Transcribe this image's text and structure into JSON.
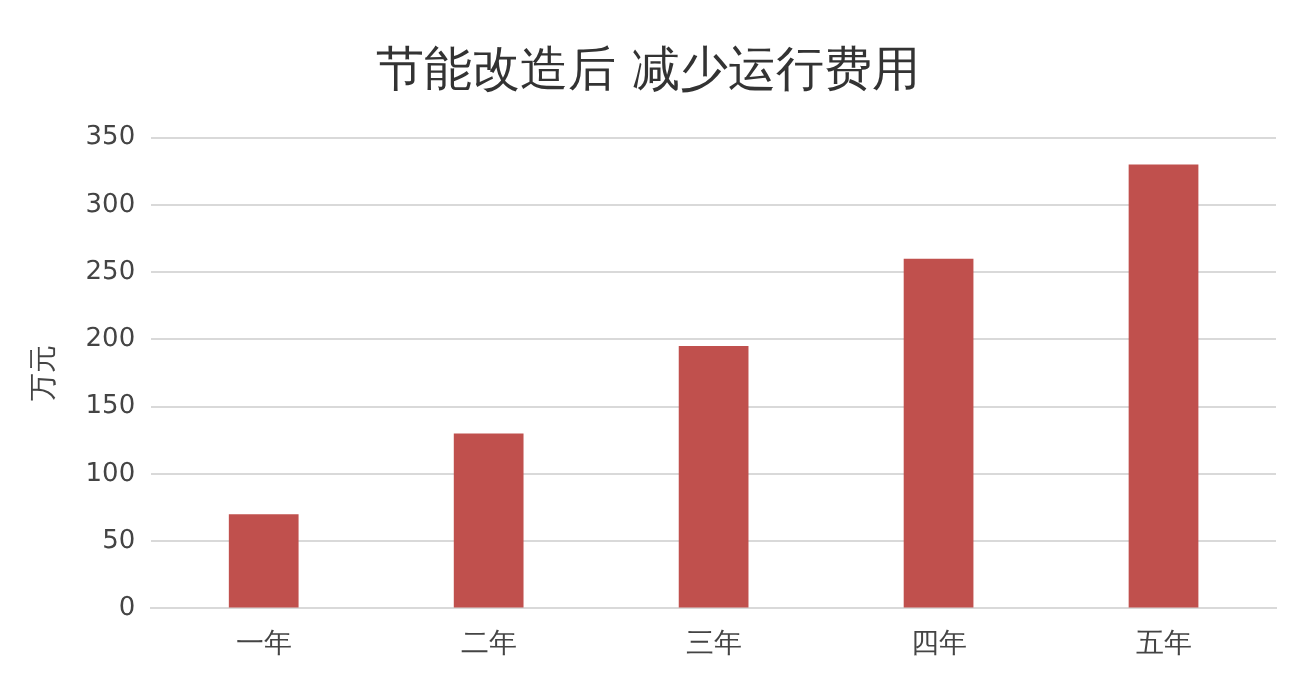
{
  "chart_data": {
    "type": "bar",
    "title": "节能改造后 减少运行费用",
    "ylabel": "万元",
    "categories": [
      "一年",
      "二年",
      "三年",
      "四年",
      "五年"
    ],
    "values": [
      70,
      130,
      195,
      260,
      330
    ],
    "color": "#c0504d",
    "ylim": [
      0,
      350
    ],
    "yticks": [
      0,
      50,
      100,
      150,
      200,
      250,
      300,
      350
    ],
    "grid": "y"
  }
}
